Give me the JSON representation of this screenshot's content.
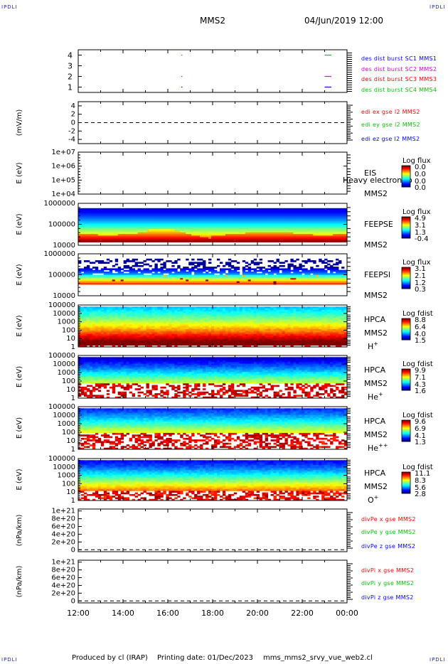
{
  "corner_mark": "IPDLI",
  "header": {
    "spacecraft": "MMS2",
    "datetime": "04/Jun/2019 12:00"
  },
  "footer": {
    "producer": "Produced by cl (IRAP)",
    "printing": "Printing date: 01/Dec/2023",
    "script": "mms_mms2_srvy_vue_web2.cl"
  },
  "colors": {
    "blue": "#0000ff",
    "magenta": "#e000e0",
    "red": "#ff0000",
    "green": "#00c800"
  },
  "chart_data": [
    {
      "type": "line",
      "id": "burst",
      "ylim": [
        0.5,
        4.5
      ],
      "ticks": [
        "1",
        "2",
        "3",
        "4"
      ],
      "legend": [
        {
          "name": "des dist burst SC1 MMS1",
          "color": "#0000ff"
        },
        {
          "name": "des dist burst SC2 MMS2",
          "color": "#e000e0"
        },
        {
          "name": "des dist burst SC3 MMS3",
          "color": "#ff0000"
        },
        {
          "name": "des dist burst SC4 MMS4",
          "color": "#00c800"
        }
      ],
      "segments": [
        {
          "level": 4,
          "t": [
            16.6,
            16.65
          ],
          "color": "#00c800"
        },
        {
          "level": 2,
          "t": [
            16.6,
            16.65
          ],
          "color": "#e000e0"
        },
        {
          "level": 1,
          "t": [
            16.6,
            16.65
          ],
          "color": "#0000ff"
        },
        {
          "level": 4,
          "t": [
            23.0,
            23.3
          ],
          "color": "#00c800"
        },
        {
          "level": 2,
          "t": [
            23.0,
            23.3
          ],
          "color": "#e000e0"
        },
        {
          "level": 1,
          "t": [
            23.0,
            23.3
          ],
          "color": "#0000ff"
        }
      ]
    },
    {
      "type": "line",
      "id": "edi",
      "ylabel": "(mV/m)",
      "ylim": [
        -5,
        5
      ],
      "ticks": [
        "4",
        "2",
        "0",
        "-2",
        "-4"
      ],
      "dashed_zero": true,
      "legend": [
        {
          "name": "edi ex gse l2 MMS2",
          "color": "#ff0000"
        },
        {
          "name": "edi ey gse l2 MMS2",
          "color": "#00c800"
        },
        {
          "name": "edi ez gse l2 MMS2",
          "color": "#0000ff"
        }
      ]
    },
    {
      "type": "heatmap",
      "id": "eis",
      "ylabel": "E (eV)",
      "log": true,
      "ticks": [
        "1e+07",
        "1e+06",
        "1e+05",
        "1e+04"
      ],
      "instrument": "EIS",
      "overlay": "Heavy electron to",
      "sc": "MMS2",
      "cbar": {
        "title": "Log flux",
        "labels": [
          "0.0",
          "0.0",
          "0.0",
          "0.0"
        ]
      }
    },
    {
      "type": "heatmap",
      "id": "feepse",
      "ylabel": "E (eV)",
      "log": true,
      "ticks": [
        "1000000",
        "100000",
        "10000"
      ],
      "instrument": "FEEPSE",
      "sc": "MMS2",
      "cbar": {
        "title": "Log flux",
        "labels": [
          "4.9",
          "3.1",
          "1.3",
          "-0.4"
        ]
      }
    },
    {
      "type": "heatmap",
      "id": "feepsi",
      "ylabel": "E (eV)",
      "log": true,
      "ticks": [
        "1000000",
        "100000",
        "10000"
      ],
      "instrument": "FEEPSI",
      "sc": "MMS2",
      "cbar": {
        "title": "Log flux",
        "labels": [
          "3.1",
          "2.1",
          "1.2",
          "0.3"
        ]
      }
    },
    {
      "type": "heatmap",
      "id": "hpca_h",
      "ylabel": "E (eV)",
      "log": true,
      "ticks": [
        "100000",
        "10000",
        "1000",
        "100",
        "10",
        "1"
      ],
      "instrument": "HPCA",
      "sc": "MMS2",
      "species": "H",
      "charge": "+",
      "cbar": {
        "title": "Log fdist",
        "labels": [
          "8.8",
          "6.4",
          "4.0",
          "1.5"
        ]
      }
    },
    {
      "type": "heatmap",
      "id": "hpca_he",
      "ylabel": "E (eV)",
      "log": true,
      "ticks": [
        "100000",
        "10000",
        "1000",
        "100",
        "10",
        "1"
      ],
      "instrument": "HPCA",
      "sc": "MMS2",
      "species": "He",
      "charge": "+",
      "cbar": {
        "title": "Log fdist",
        "labels": [
          "9.9",
          "7.1",
          "4.3",
          "1.6"
        ]
      }
    },
    {
      "type": "heatmap",
      "id": "hpca_hepp",
      "ylabel": "E (eV)",
      "log": true,
      "ticks": [
        "100000",
        "10000",
        "1000",
        "100",
        "10",
        "1"
      ],
      "instrument": "HPCA",
      "sc": "MMS2",
      "species": "He",
      "charge": "++",
      "cbar": {
        "title": "Log fdist",
        "labels": [
          "9.6",
          "6.9",
          "4.1",
          "1.3"
        ]
      }
    },
    {
      "type": "heatmap",
      "id": "hpca_o",
      "ylabel": "E (eV)",
      "log": true,
      "ticks": [
        "100000",
        "10000",
        "1000",
        "100",
        "10",
        "1"
      ],
      "instrument": "HPCA",
      "sc": "MMS2",
      "species": "O",
      "charge": "+",
      "cbar": {
        "title": "Log fdist",
        "labels": [
          "11.1",
          "8.3",
          "5.6",
          "2.8"
        ]
      }
    },
    {
      "type": "line",
      "id": "divpe",
      "ylabel": "(nPa/km)",
      "ylim": [
        -5e+19,
        1.05e+21
      ],
      "ticks": [
        "1e+21",
        "8e+20",
        "6e+20",
        "4e+20",
        "2e+20",
        "0"
      ],
      "dashed_zero": true,
      "legend": [
        {
          "name": "divPe x gse MMS2",
          "color": "#ff0000"
        },
        {
          "name": "divPe y gse MMS2",
          "color": "#00c800"
        },
        {
          "name": "divPe z gse MMS2",
          "color": "#0000ff"
        }
      ]
    },
    {
      "type": "line",
      "id": "divpi",
      "ylabel": "(nPa/km)",
      "ylim": [
        -5e+19,
        1.05e+21
      ],
      "ticks": [
        "1e+21",
        "8e+20",
        "6e+20",
        "4e+20",
        "2e+20",
        "0"
      ],
      "dashed_zero": true,
      "legend": [
        {
          "name": "divPi x gse MMS2",
          "color": "#ff0000"
        },
        {
          "name": "divPi y gse MMS2",
          "color": "#00c800"
        },
        {
          "name": "divPi z gse MMS2",
          "color": "#0000ff"
        }
      ]
    }
  ],
  "time_axis": {
    "range": [
      12,
      24
    ],
    "labels": [
      "12:00",
      "14:00",
      "16:00",
      "18:00",
      "20:00",
      "22:00",
      "00:00"
    ]
  }
}
